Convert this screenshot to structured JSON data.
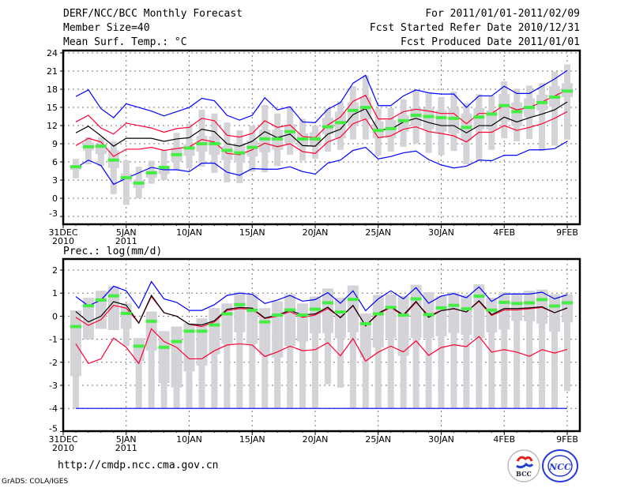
{
  "header": {
    "title": "DERF/NCC/BCC Monthly Forecast",
    "member_size": "Member Size=40",
    "variable": "Mean Surf. Temp.: °C",
    "period": "For 2011/01/01-2011/02/09",
    "start_date": "Fcst Started Refer Date 2010/12/31",
    "produced_date": "Fcst Produced Date 2011/01/01"
  },
  "footer": {
    "url": "http://cmdp.ncc.cma.gov.cn",
    "credit": "GrADS: COLA/IGES",
    "logo_bcc": "BCC",
    "logo_ncc": "NCC"
  },
  "colors": {
    "outer": "#0000ff",
    "inner": "#ff0033",
    "mean": "#000000",
    "obs": "#44ee44",
    "bar": "#d3d3d8"
  },
  "chart_data": [
    {
      "type": "line",
      "title": "Mean Surf. Temp.: °C",
      "ylabel": "°C",
      "ylim": [
        -4.3,
        24
      ],
      "yticks": [
        "24",
        "21",
        "18",
        "15",
        "12",
        "9",
        "6",
        "3",
        "0",
        "-3"
      ],
      "ytick_values": [
        24,
        21,
        18,
        15,
        12,
        9,
        6,
        3,
        0,
        -3
      ],
      "xticks": [
        {
          "day": 0,
          "label": "31DEC",
          "sub": "2010"
        },
        {
          "day": 5,
          "label": "5JAN",
          "sub": "2011"
        },
        {
          "day": 10,
          "label": "10JAN"
        },
        {
          "day": 15,
          "label": "15JAN"
        },
        {
          "day": 20,
          "label": "20JAN"
        },
        {
          "day": 25,
          "label": "25JAN"
        },
        {
          "day": 30,
          "label": "30JAN"
        },
        {
          "day": 35,
          "label": "4FEB"
        },
        {
          "day": 40,
          "label": "9FEB"
        }
      ],
      "x_days": [
        1,
        2,
        3,
        4,
        5,
        6,
        7,
        8,
        9,
        10,
        11,
        12,
        13,
        14,
        15,
        16,
        17,
        18,
        19,
        20,
        21,
        22,
        23,
        24,
        25,
        26,
        27,
        28,
        29,
        30,
        31,
        32,
        33,
        34,
        35,
        36,
        37,
        38,
        39,
        40
      ],
      "series": [
        {
          "name": "upper-outer",
          "color": "#0000ff",
          "values": [
            16.8,
            17.9,
            14.8,
            13.3,
            15.6,
            15.0,
            14.4,
            13.6,
            14.3,
            15.0,
            16.5,
            16.1,
            13.7,
            12.9,
            13.7,
            16.6,
            14.6,
            15.1,
            12.6,
            12.5,
            14.7,
            15.8,
            19.0,
            20.3,
            15.3,
            15.3,
            16.9,
            17.9,
            17.4,
            17.2,
            17.2,
            15.0,
            16.9,
            16.9,
            18.5,
            17.3,
            17.3,
            18.5,
            19.7,
            21.1
          ]
        },
        {
          "name": "upper-inner",
          "color": "#ff0033",
          "values": [
            12.6,
            13.7,
            11.6,
            10.6,
            12.4,
            12.0,
            11.6,
            10.9,
            11.5,
            11.7,
            13.2,
            12.8,
            10.4,
            10.1,
            10.7,
            12.8,
            11.7,
            12.1,
            10.2,
            10.0,
            12.1,
            13.4,
            16.0,
            17.0,
            13.1,
            13.1,
            14.3,
            14.7,
            14.4,
            14.0,
            14.0,
            12.3,
            14.0,
            14.0,
            15.4,
            14.6,
            15.0,
            15.9,
            16.9,
            17.9
          ]
        },
        {
          "name": "mean",
          "color": "#000000",
          "values": [
            10.8,
            11.9,
            10.3,
            8.6,
            9.9,
            9.9,
            9.9,
            9.4,
            9.8,
            10.0,
            11.4,
            11.0,
            9.0,
            8.6,
            9.4,
            11.0,
            10.0,
            10.6,
            8.7,
            8.6,
            10.6,
            11.4,
            13.8,
            14.8,
            11.3,
            11.4,
            12.6,
            13.2,
            12.5,
            12.0,
            12.0,
            10.8,
            12.0,
            12.0,
            13.4,
            12.6,
            13.3,
            13.9,
            14.6,
            15.9
          ]
        },
        {
          "name": "lower-inner",
          "color": "#ff0033",
          "values": [
            8.7,
            9.9,
            9.3,
            6.9,
            8.1,
            8.1,
            8.4,
            7.9,
            8.2,
            8.5,
            9.7,
            9.3,
            7.4,
            7.2,
            8.0,
            9.1,
            8.5,
            9.0,
            7.7,
            7.4,
            9.3,
            10.1,
            12.3,
            13.1,
            10.0,
            10.3,
            11.4,
            11.8,
            11.0,
            10.7,
            10.3,
            9.3,
            10.9,
            10.9,
            12.0,
            11.2,
            11.7,
            12.3,
            13.2,
            14.3
          ]
        },
        {
          "name": "lower-outer",
          "color": "#0000ff",
          "values": [
            5.0,
            6.3,
            5.4,
            2.3,
            3.3,
            4.2,
            5.1,
            4.7,
            4.7,
            4.4,
            5.8,
            5.8,
            4.3,
            3.8,
            4.9,
            4.8,
            4.8,
            5.2,
            4.4,
            4.0,
            5.8,
            6.3,
            7.9,
            8.4,
            6.5,
            6.9,
            7.5,
            7.8,
            6.4,
            5.5,
            5.0,
            5.3,
            6.3,
            6.2,
            7.1,
            7.1,
            8.0,
            8.0,
            8.2,
            9.4
          ]
        }
      ],
      "observed": [
        5.2,
        8.5,
        8.6,
        6.3,
        3.4,
        2.5,
        4.2,
        5.1,
        7.2,
        8.3,
        9.0,
        9.0,
        7.9,
        7.5,
        8.4,
        9.8,
        9.8,
        11.0,
        9.8,
        9.8,
        11.8,
        12.5,
        14.5,
        15.0,
        11.2,
        11.5,
        12.8,
        13.7,
        13.5,
        13.3,
        13.2,
        11.7,
        13.4,
        13.9,
        15.3,
        14.3,
        15.0,
        15.8,
        16.7,
        17.7
      ],
      "ensemble_bars": [
        [
          3.3,
          4.7,
          5.5,
          6.5
        ],
        [
          5.6,
          7.9,
          9.2,
          10.1
        ],
        [
          5.3,
          7.3,
          8.9,
          10.1
        ],
        [
          0.7,
          5.0,
          7.9,
          9.4
        ],
        [
          -1.1,
          2.7,
          4.1,
          6.3
        ],
        [
          0.0,
          1.7,
          3.0,
          5.2
        ],
        [
          2.4,
          3.4,
          4.6,
          6.2
        ],
        [
          3.0,
          4.0,
          5.3,
          8.0
        ],
        [
          4.7,
          6.0,
          8.4,
          10.8
        ],
        [
          4.9,
          7.0,
          8.9,
          12.3
        ],
        [
          5.2,
          7.7,
          10.3,
          14.6
        ],
        [
          4.2,
          7.2,
          10.2,
          14.0
        ],
        [
          2.6,
          6.3,
          8.6,
          12.5
        ],
        [
          2.5,
          6.0,
          9.1,
          11.2
        ],
        [
          4.4,
          6.9,
          9.6,
          12.0
        ],
        [
          4.3,
          7.6,
          11.3,
          15.4
        ],
        [
          5.3,
          8.0,
          11.3,
          14.0
        ],
        [
          7.2,
          9.1,
          12.2,
          15.2
        ],
        [
          6.2,
          8.5,
          10.7,
          13.1
        ],
        [
          6.5,
          8.6,
          10.9,
          12.0
        ],
        [
          7.7,
          10.6,
          13.3,
          14.8
        ],
        [
          8.0,
          9.9,
          14.3,
          16.0
        ],
        [
          9.7,
          11.9,
          15.8,
          18.5
        ],
        [
          9.7,
          13.0,
          16.7,
          20.3
        ],
        [
          7.1,
          9.9,
          12.7,
          14.8
        ],
        [
          7.7,
          9.9,
          12.9,
          14.9
        ],
        [
          8.5,
          11.0,
          13.7,
          16.3
        ],
        [
          9.0,
          11.9,
          14.9,
          17.9
        ],
        [
          7.5,
          11.4,
          14.9,
          17.3
        ],
        [
          7.1,
          11.0,
          14.5,
          16.7
        ],
        [
          7.8,
          10.7,
          14.9,
          17.6
        ],
        [
          5.6,
          9.5,
          14.0,
          15.7
        ],
        [
          6.2,
          11.4,
          14.9,
          17.2
        ],
        [
          8.0,
          11.4,
          14.5,
          16.9
        ],
        [
          9.9,
          12.7,
          17.2,
          19.3
        ],
        [
          9.4,
          11.9,
          15.8,
          18.1
        ],
        [
          9.8,
          13.4,
          16.5,
          18.6
        ],
        [
          7.8,
          14.5,
          17.1,
          19.0
        ],
        [
          8.7,
          15.1,
          18.5,
          20.9
        ],
        [
          9.7,
          16.7,
          19.0,
          22.1
        ]
      ]
    },
    {
      "type": "line",
      "title": "Prec.: log(mm/d)",
      "ylabel": "log(mm/d)",
      "ylim": [
        -5,
        2.4
      ],
      "yticks": [
        "2",
        "1",
        "0",
        "-1",
        "-2",
        "-3",
        "-4",
        "-5"
      ],
      "ytick_values": [
        2,
        1,
        0,
        -1,
        -2,
        -3,
        -4,
        -5
      ],
      "xticks": [
        {
          "day": 0,
          "label": "31DEC",
          "sub": "2010"
        },
        {
          "day": 5,
          "label": "5JAN",
          "sub": "2011"
        },
        {
          "day": 10,
          "label": "10JAN"
        },
        {
          "day": 15,
          "label": "15JAN"
        },
        {
          "day": 20,
          "label": "20JAN"
        },
        {
          "day": 25,
          "label": "25JAN"
        },
        {
          "day": 30,
          "label": "30JAN"
        },
        {
          "day": 35,
          "label": "4FEB"
        },
        {
          "day": 40,
          "label": "9FEB"
        }
      ],
      "x_days": [
        1,
        2,
        3,
        4,
        5,
        6,
        7,
        8,
        9,
        10,
        11,
        12,
        13,
        14,
        15,
        16,
        17,
        18,
        19,
        20,
        21,
        22,
        23,
        24,
        25,
        26,
        27,
        28,
        29,
        30,
        31,
        32,
        33,
        34,
        35,
        36,
        37,
        38,
        39,
        40
      ],
      "series": [
        {
          "name": "upper-outer",
          "color": "#0000ff",
          "values": [
            0.85,
            0.45,
            0.7,
            1.3,
            1.1,
            0.35,
            1.5,
            0.75,
            0.6,
            0.25,
            0.25,
            0.5,
            0.9,
            1.0,
            0.95,
            0.55,
            0.7,
            0.9,
            0.65,
            0.72,
            1.02,
            0.56,
            1.1,
            0.24,
            0.75,
            1.1,
            0.75,
            1.24,
            0.56,
            0.87,
            0.98,
            0.8,
            1.27,
            0.64,
            0.96,
            0.96,
            0.96,
            1.04,
            0.75,
            0.93
          ]
        },
        {
          "name": "upper-inner",
          "color": "#ff0033",
          "values": [
            -0.05,
            -0.4,
            -0.15,
            0.47,
            0.35,
            -0.3,
            0.85,
            0.15,
            0.0,
            -0.35,
            -0.45,
            -0.25,
            0.25,
            0.33,
            0.3,
            -0.1,
            0.0,
            0.2,
            -0.05,
            0.05,
            0.33,
            -0.05,
            0.45,
            -0.42,
            0.09,
            0.38,
            0.01,
            0.6,
            0.03,
            0.24,
            0.32,
            0.18,
            0.64,
            0.03,
            0.27,
            0.27,
            0.32,
            0.38,
            0.15,
            0.36
          ]
        },
        {
          "name": "mean",
          "color": "#000000",
          "values": [
            0.2,
            -0.25,
            0.0,
            0.63,
            0.48,
            -0.3,
            0.9,
            0.15,
            0.0,
            -0.35,
            -0.38,
            -0.2,
            0.3,
            0.38,
            0.35,
            -0.08,
            0.05,
            0.25,
            0.05,
            0.1,
            0.39,
            -0.07,
            0.47,
            -0.42,
            0.13,
            0.41,
            0.05,
            0.64,
            -0.05,
            0.24,
            0.33,
            0.18,
            0.67,
            0.07,
            0.33,
            0.33,
            0.36,
            0.41,
            0.15,
            0.36
          ]
        },
        {
          "name": "lower-inner",
          "color": "#ff0033",
          "values": [
            -1.2,
            -2.05,
            -1.85,
            -0.95,
            -1.35,
            -2.05,
            -0.55,
            -1.1,
            -1.35,
            -1.85,
            -1.85,
            -1.5,
            -1.25,
            -1.2,
            -1.25,
            -1.75,
            -1.55,
            -1.3,
            -1.5,
            -1.45,
            -1.15,
            -1.72,
            -0.97,
            -1.95,
            -1.56,
            -1.3,
            -1.55,
            -1.07,
            -1.7,
            -1.36,
            -1.24,
            -1.32,
            -0.88,
            -1.56,
            -1.45,
            -1.56,
            -1.74,
            -1.45,
            -1.6,
            -1.44
          ]
        },
        {
          "name": "lower-outer",
          "color": "#0000ff",
          "values": [
            -4,
            -4,
            -4,
            -4,
            -4,
            -4,
            -4,
            -4,
            -4,
            -4,
            -4,
            -4,
            -4,
            -4,
            -4,
            -4,
            -4,
            -4,
            -4,
            -4,
            -4,
            -4,
            -4,
            -4,
            -4,
            -4,
            -4,
            -4,
            -4,
            -4,
            -4,
            -4,
            -4,
            -4,
            -4,
            -4,
            -4,
            -4,
            -4,
            -4
          ]
        }
      ],
      "observed": [
        -0.45,
        0.45,
        0.7,
        0.88,
        0.12,
        -1.3,
        -0.22,
        -1.35,
        -1.1,
        -0.65,
        -0.65,
        -0.38,
        0.1,
        0.5,
        0.25,
        -0.25,
        0.05,
        0.27,
        0.05,
        0.3,
        0.58,
        0.18,
        0.73,
        -0.33,
        0.1,
        0.38,
        0.05,
        0.75,
        0.07,
        0.36,
        0.47,
        0.32,
        0.87,
        0.26,
        0.6,
        0.55,
        0.58,
        0.72,
        0.44,
        0.58
      ],
      "ensemble_bars": [
        [
          -4,
          -2.6,
          0.25,
          0.25
        ],
        [
          -1.0,
          -1.0,
          0.8,
          0.8
        ],
        [
          -0.55,
          -0.55,
          1.1,
          1.1
        ],
        [
          -0.6,
          -0.6,
          1.3,
          1.3
        ],
        [
          -1.3,
          -0.55,
          0.55,
          0.55
        ],
        [
          -4,
          -1.95,
          -0.95,
          -0.95
        ],
        [
          -4,
          -1.5,
          0.2,
          0.2
        ],
        [
          -4,
          -2.9,
          -0.65,
          -0.65
        ],
        [
          -4,
          -3.1,
          -0.45,
          -0.45
        ],
        [
          -4,
          -2.4,
          -0.3,
          -0.3
        ],
        [
          -4,
          -2.15,
          -0.1,
          -0.1
        ],
        [
          -4,
          -1.65,
          0.35,
          0.35
        ],
        [
          -4,
          -1.2,
          0.55,
          0.55
        ],
        [
          -4,
          -0.7,
          1.05,
          1.05
        ],
        [
          -4,
          -1.2,
          0.95,
          0.95
        ],
        [
          -4,
          -1.7,
          0.35,
          0.35
        ],
        [
          -4,
          -1.8,
          0.65,
          0.65
        ],
        [
          -4,
          -1.3,
          0.95,
          0.95
        ],
        [
          -4,
          -1.1,
          0.55,
          0.55
        ],
        [
          -4,
          -0.75,
          0.85,
          0.85
        ],
        [
          -2.95,
          -0.73,
          1.2,
          1.2
        ],
        [
          -3.1,
          -0.96,
          0.8,
          0.8
        ],
        [
          -4,
          -0.7,
          1.33,
          1.33
        ],
        [
          -4,
          -1.8,
          0.12,
          0.12
        ],
        [
          -4,
          -1.36,
          0.92,
          0.92
        ],
        [
          -4,
          -0.95,
          0.95,
          0.95
        ],
        [
          -4,
          -1.72,
          0.87,
          0.87
        ],
        [
          -4,
          -0.95,
          1.36,
          1.36
        ],
        [
          -4,
          -0.95,
          1.04,
          1.04
        ],
        [
          -4,
          -0.87,
          0.87,
          0.87
        ],
        [
          -4,
          -0.73,
          1.04,
          1.04
        ],
        [
          -4,
          -0.8,
          0.92,
          0.92
        ],
        [
          -4,
          -0.95,
          1.38,
          1.38
        ],
        [
          -4,
          -0.7,
          0.8,
          0.8
        ],
        [
          -4,
          -0.58,
          1.04,
          1.04
        ],
        [
          -4,
          -0.2,
          1.0,
          1.0
        ],
        [
          -4,
          -0.22,
          1.1,
          1.1
        ],
        [
          -4,
          -0.33,
          1.15,
          1.15
        ],
        [
          -4,
          -0.67,
          0.95,
          0.95
        ],
        [
          -3.25,
          -0.27,
          0.95,
          0.95
        ]
      ]
    }
  ]
}
